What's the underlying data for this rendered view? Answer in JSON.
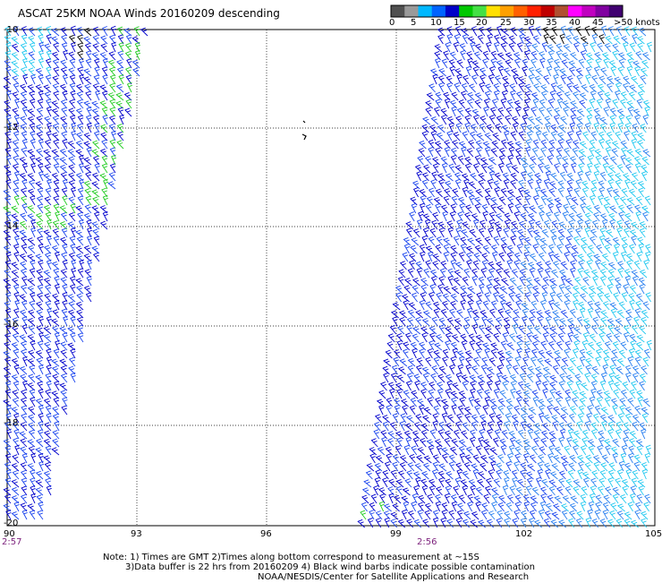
{
  "header": {
    "title": "ASCAT 25KM NOAA Winds 20160209 descending"
  },
  "legend": {
    "labels": [
      "0",
      "5",
      "10",
      "15",
      "20",
      "25",
      "30",
      "35",
      "40",
      "45",
      ">50 knots"
    ],
    "colors": [
      "#505050",
      "#9a9a9a",
      "#00b8ff",
      "#0064ff",
      "#0000c8",
      "#00c800",
      "#44e044",
      "#ffe000",
      "#ffa000",
      "#ff6000",
      "#ff2000",
      "#c00000",
      "#b05030",
      "#ff00ff",
      "#c000c0",
      "#8000a0",
      "#400070"
    ]
  },
  "axes": {
    "x_ticks": [
      "90",
      "93",
      "96",
      "99",
      "102",
      "105"
    ],
    "y_ticks": [
      "-10",
      "-12",
      "-14",
      "-16",
      "-18",
      "-20"
    ]
  },
  "swaths": {
    "left_time": "2:57",
    "right_time": "2:56"
  },
  "notes": {
    "line1": "Note: 1) Times are GMT 2)Times along bottom correspond to measurement at ~15S",
    "line2": "3)Data buffer is 22 hrs from 20160209 4) Black wind barbs indicate possible contamination",
    "line3": "NOAA/NESDIS/Center for Satellite Applications and Research"
  },
  "barb_colors": {
    "dark_blue": "#0000cc",
    "blue": "#1a44ee",
    "mid_blue": "#2a7ff0",
    "cyan": "#22c8f0",
    "green": "#22cc22",
    "yellow": "#f0f080",
    "black": "#000000"
  }
}
